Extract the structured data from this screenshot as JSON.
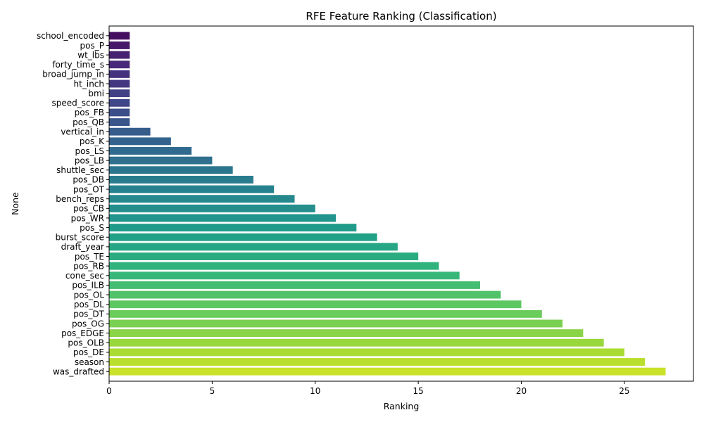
{
  "chart_data": {
    "type": "bar",
    "orientation": "horizontal",
    "title": "RFE Feature Ranking (Classification)",
    "xlabel": "Ranking",
    "ylabel": "None",
    "xlim": [
      0,
      28.35
    ],
    "xticks": [
      0,
      5,
      10,
      15,
      20,
      25
    ],
    "grid": false,
    "colormap": "viridis",
    "categories": [
      "school_encoded",
      "pos_P",
      "wt_lbs",
      "forty_time_s",
      "broad_jump_in",
      "ht_inch",
      "bmi",
      "speed_score",
      "pos_FB",
      "pos_QB",
      "vertical_in",
      "pos_K",
      "pos_LS",
      "pos_LB",
      "shuttle_sec",
      "pos_DB",
      "pos_OT",
      "bench_reps",
      "pos_CB",
      "pos_WR",
      "pos_S",
      "burst_score",
      "draft_year",
      "pos_TE",
      "pos_RB",
      "cone_sec",
      "pos_ILB",
      "pos_OL",
      "pos_DL",
      "pos_DT",
      "pos_OG",
      "pos_EDGE",
      "pos_OLB",
      "pos_DE",
      "season",
      "was_drafted"
    ],
    "values": [
      1,
      1,
      1,
      1,
      1,
      1,
      1,
      1,
      1,
      1,
      2,
      3,
      4,
      5,
      6,
      7,
      8,
      9,
      10,
      11,
      12,
      13,
      14,
      15,
      16,
      17,
      18,
      19,
      20,
      21,
      22,
      23,
      24,
      25,
      26,
      27
    ]
  }
}
